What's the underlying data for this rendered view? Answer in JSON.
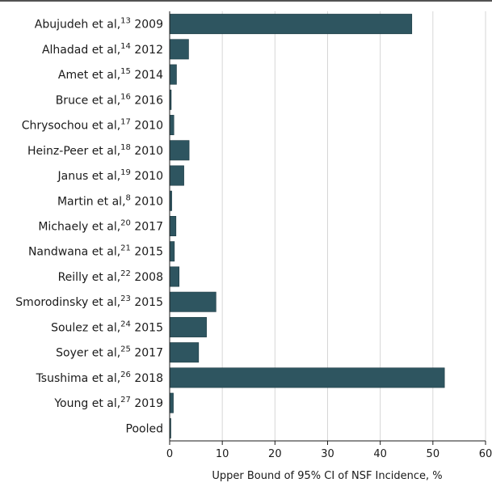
{
  "chart_data": {
    "type": "bar",
    "orientation": "horizontal",
    "bar_color": "#2e5560",
    "grid": true,
    "grid_color": "#d6d6d6",
    "xlim": [
      0,
      60
    ],
    "xticks": [
      0,
      10,
      20,
      30,
      40,
      50,
      60
    ],
    "xlabel": "Upper Bound of 95% CI of NSF Incidence, %",
    "categories": [
      {
        "author": "Abujudeh et al,",
        "ref": "13",
        "year": "2009"
      },
      {
        "author": "Alhadad et al,",
        "ref": "14",
        "year": "2012"
      },
      {
        "author": "Amet et al,",
        "ref": "15",
        "year": "2014"
      },
      {
        "author": "Bruce et al,",
        "ref": "16",
        "year": "2016"
      },
      {
        "author": "Chrysochou et al,",
        "ref": "17",
        "year": "2010"
      },
      {
        "author": "Heinz-Peer et al,",
        "ref": "18",
        "year": "2010"
      },
      {
        "author": "Janus et al,",
        "ref": "19",
        "year": "2010"
      },
      {
        "author": "Martin et al,",
        "ref": "8",
        "year": "2010"
      },
      {
        "author": "Michaely et al,",
        "ref": "20",
        "year": "2017"
      },
      {
        "author": "Nandwana et al,",
        "ref": "21",
        "year": "2015"
      },
      {
        "author": "Reilly et al,",
        "ref": "22",
        "year": "2008"
      },
      {
        "author": "Smorodinsky et al,",
        "ref": "23",
        "year": "2015"
      },
      {
        "author": "Soulez et al,",
        "ref": "24",
        "year": "2015"
      },
      {
        "author": "Soyer et al,",
        "ref": "25",
        "year": "2017"
      },
      {
        "author": "Tsushima et al,",
        "ref": "26",
        "year": "2018"
      },
      {
        "author": "Young et al,",
        "ref": "27",
        "year": "2019"
      },
      {
        "author": "Pooled",
        "ref": "",
        "year": ""
      }
    ],
    "values": [
      46.0,
      3.6,
      1.3,
      0.3,
      0.8,
      3.7,
      2.7,
      0.4,
      1.2,
      0.9,
      1.8,
      8.8,
      7.0,
      5.5,
      52.2,
      0.7,
      0.2
    ]
  }
}
